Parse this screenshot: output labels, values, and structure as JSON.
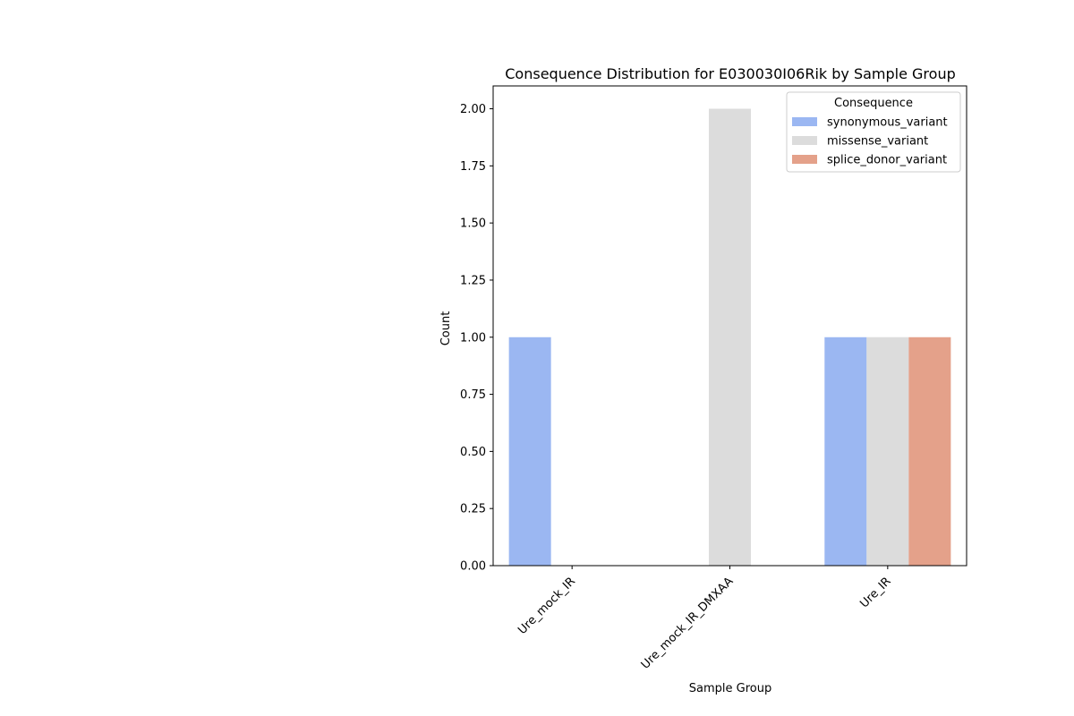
{
  "chart_data": {
    "type": "bar",
    "title": "Consequence Distribution for E030030I06Rik by Sample Group",
    "xlabel": "Sample Group",
    "ylabel": "Count",
    "categories": [
      "Ure_mock_IR",
      "Ure_mock_IR_DMXAA",
      "Ure_IR"
    ],
    "series": [
      {
        "name": "synonymous_variant",
        "color": "#9bb7f2",
        "values": [
          1,
          0,
          1
        ]
      },
      {
        "name": "missense_variant",
        "color": "#dcdcdc",
        "values": [
          0,
          2,
          1
        ]
      },
      {
        "name": "splice_donor_variant",
        "color": "#e4a18a",
        "values": [
          0,
          0,
          1
        ]
      }
    ],
    "ylim": [
      0,
      2.1
    ],
    "yticks": [
      "0.00",
      "0.25",
      "0.50",
      "0.75",
      "1.00",
      "1.25",
      "1.50",
      "1.75",
      "2.00"
    ],
    "ytick_values": [
      0,
      0.25,
      0.5,
      0.75,
      1.0,
      1.25,
      1.5,
      1.75,
      2.0
    ],
    "grid": false,
    "legend": {
      "title": "Consequence",
      "placement": "top-right"
    }
  }
}
